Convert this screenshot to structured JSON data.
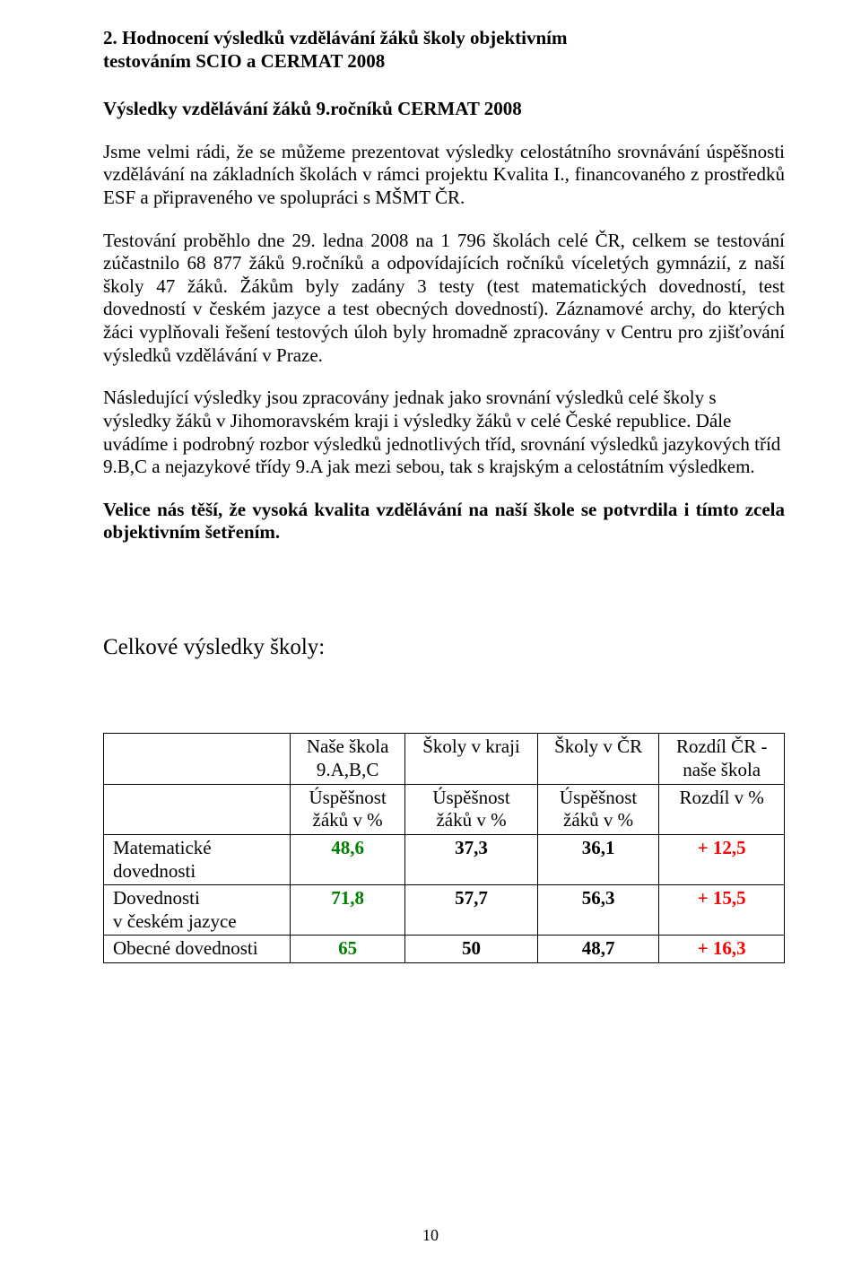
{
  "heading": {
    "number": "2.",
    "title_line1": "Hodnocení  výsledků vzdělávání žáků  školy objektivním",
    "title_line2": "testováním SCIO a CERMAT 2008"
  },
  "subheading": "Výsledky vzdělávání žáků 9.ročníků CERMAT 2008",
  "para1": "Jsme velmi rádi, že se můžeme prezentovat výsledky celostátního srovnávání úspěšnosti vzdělávání na základních školách v rámci projektu Kvalita I., financovaného z prostředků ESF a připraveného ve spolupráci s MŠMT ČR.",
  "para2": "Testování proběhlo dne 29. ledna 2008 na 1 796 školách celé ČR, celkem se testování zúčastnilo 68 877 žáků 9.ročníků a odpovídajících ročníků víceletých gymnázií, z naší školy 47 žáků. Žákům byly zadány 3 testy (test matematických dovedností, test dovedností v českém jazyce a test obecných dovedností). Záznamové archy, do kterých žáci vyplňovali řešení testových úloh byly hromadně zpracovány v Centru pro zjišťování výsledků vzdělávání v Praze.",
  "para3": "Následující výsledky jsou zpracovány jednak jako srovnání výsledků celé školy s výsledky žáků v Jihomoravském kraji i výsledky žáků v celé České republice. Dále uvádíme i podrobný rozbor výsledků jednotlivých tříd, srovnání výsledků jazykových tříd 9.B,C a nejazykové třídy 9.A jak mezi sebou, tak s krajským a celostátním výsledkem.",
  "para4": "Velice nás těší, že vysoká kvalita vzdělávání na naší škole se potvrdila i tímto zcela objektivním šetřením.",
  "summary_title": "Celkové výsledky školy:",
  "table": {
    "headers": {
      "c1_l1": "Naše škola",
      "c1_l2": "9.A,B,C",
      "c2": "Školy v kraji",
      "c3": "Školy v ČR",
      "c4_l1": "Rozdíl ČR -",
      "c4_l2": "naše škola"
    },
    "subheaders": {
      "c1_l1": "Úspěšnost",
      "c1_l2": "žáků v %",
      "c2_l1": "Úspěšnost",
      "c2_l2": "žáků v %",
      "c3_l1": "Úspěšnost",
      "c3_l2": "žáků v %",
      "c4": "Rozdíl v %"
    },
    "rows": [
      {
        "label_l1": "Matematické",
        "label_l2": "dovednosti",
        "val1": "48,6",
        "val2": "37,3",
        "val3": "36,1",
        "diff": "+ 12,5"
      },
      {
        "label_l1": "Dovednosti",
        "label_l2": "v českém jazyce",
        "val1": "71,8",
        "val2": "57,7",
        "val3": "56,3",
        "diff": "+ 15,5"
      },
      {
        "label_l1": "Obecné dovednosti",
        "label_l2": "",
        "val1": "65",
        "val2": "50",
        "val3": "48,7",
        "diff": "+ 16,3"
      }
    ]
  },
  "colors": {
    "green": "#008000",
    "red": "#ff0000",
    "text": "#000000",
    "border": "#000000",
    "bg": "#ffffff"
  },
  "page_number": "10"
}
